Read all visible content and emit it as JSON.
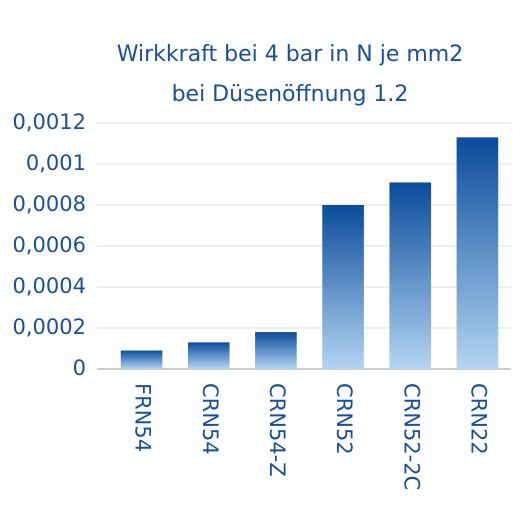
{
  "chart_data": {
    "type": "bar",
    "title": [
      "Wirkkraft bei 4 bar in N je mm2",
      "bei Düsenöffnung 1.2"
    ],
    "categories": [
      "FRN54",
      "CRN54",
      "CRN54-Z",
      "CRN52",
      "CRN52-2C",
      "CRN22"
    ],
    "values": [
      9e-05,
      0.00013,
      0.00018,
      0.0008,
      0.00091,
      0.00113
    ],
    "color": [
      "#0b4b9b",
      "#b3d5f2"
    ],
    "ylim": [
      0,
      0.0012
    ],
    "yticks": [
      0,
      {
        "value": 0.0002,
        "label": "0,0002"
      },
      {
        "value": 0.0004,
        "label": "0,0004"
      },
      {
        "value": 0.0006,
        "label": "0,0006"
      },
      {
        "value": 0.0008,
        "label": "0,0008"
      },
      {
        "value": 0.001,
        "label": "0,001"
      },
      {
        "value": 0.0012,
        "label": "0,0012"
      }
    ],
    "grid": true
  }
}
